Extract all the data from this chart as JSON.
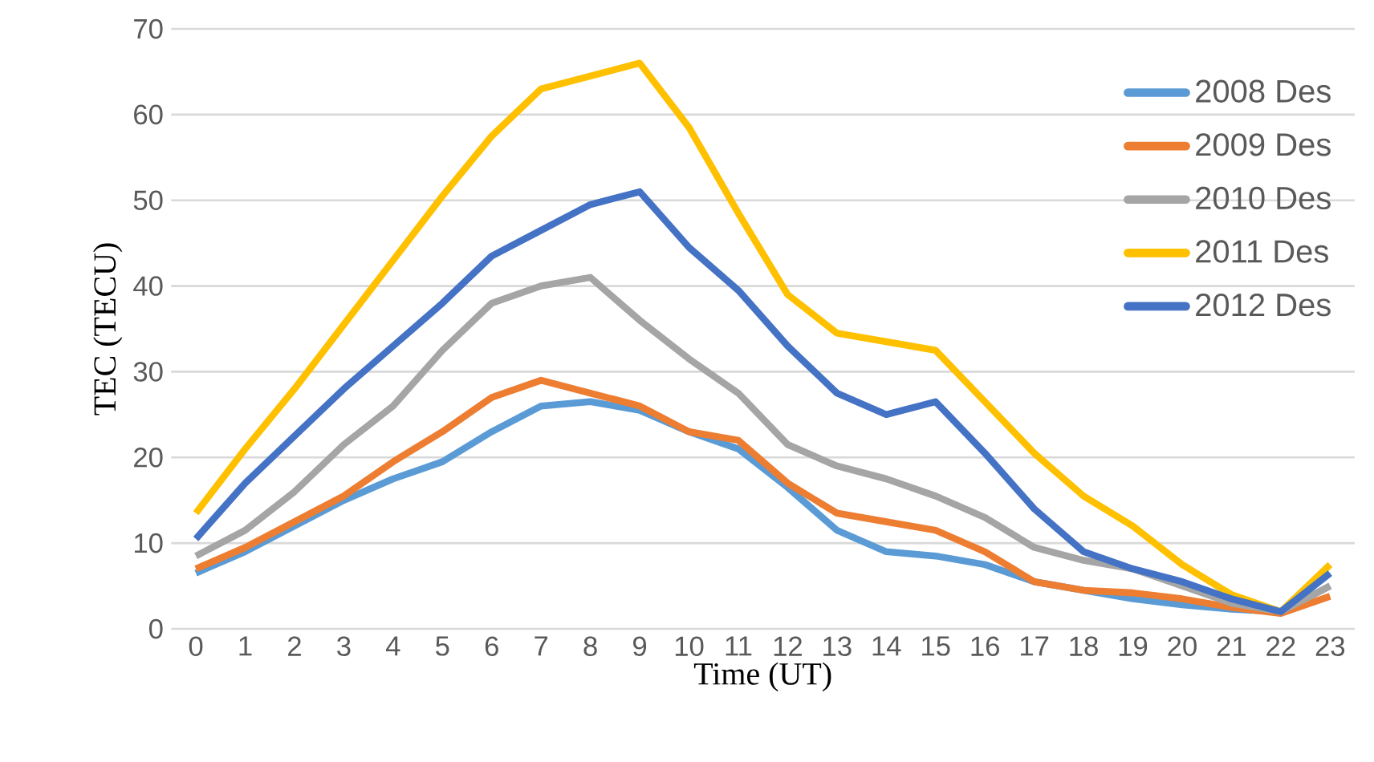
{
  "chart_data": {
    "type": "line",
    "xlabel": "Time (UT)",
    "ylabel": "TEC (TECU)",
    "categories": [
      "0",
      "1",
      "2",
      "3",
      "4",
      "5",
      "6",
      "7",
      "8",
      "9",
      "10",
      "11",
      "12",
      "13",
      "14",
      "15",
      "16",
      "17",
      "18",
      "19",
      "20",
      "21",
      "22",
      "23"
    ],
    "ylim": [
      0,
      70
    ],
    "yticks": [
      0,
      10,
      20,
      30,
      40,
      50,
      60,
      70
    ],
    "grid": "y",
    "legend": "top right",
    "marker": "none",
    "line_style": "solid",
    "series": [
      {
        "name": "2008 Des",
        "color": "#5b9bd5",
        "values": [
          6.5,
          9,
          12,
          15,
          17.5,
          19.5,
          23,
          26,
          26.5,
          25.5,
          23,
          21,
          16.5,
          11.5,
          9,
          8.5,
          7.5,
          5.5,
          4.5,
          3.5,
          2.8,
          2.3,
          2,
          5
        ]
      },
      {
        "name": "2009 Des",
        "color": "#ed7d31",
        "values": [
          7,
          9.5,
          12.5,
          15.5,
          19.5,
          23,
          27,
          29,
          27.5,
          26,
          23,
          22,
          17,
          13.5,
          12.5,
          11.5,
          9,
          5.5,
          4.5,
          4.2,
          3.5,
          2.5,
          1.8,
          3.8
        ]
      },
      {
        "name": "2010 Des",
        "color": "#a5a5a5",
        "values": [
          8.5,
          11.5,
          16,
          21.5,
          26,
          32.5,
          38,
          40,
          41,
          36,
          31.5,
          27.5,
          21.5,
          19,
          17.5,
          15.5,
          13,
          9.5,
          8,
          7,
          5,
          3,
          2,
          5
        ]
      },
      {
        "name": "2011 Des",
        "color": "#ffc000",
        "values": [
          13.5,
          21,
          28,
          35.5,
          43,
          50.5,
          57.5,
          63,
          64.5,
          66,
          58.5,
          48.5,
          39,
          34.5,
          33.5,
          32.5,
          26.5,
          20.5,
          15.5,
          12,
          7.5,
          4,
          2,
          7.5
        ]
      },
      {
        "name": "2012 Des",
        "color": "#4472c4",
        "values": [
          10.5,
          17,
          22.5,
          28,
          33,
          38,
          43.5,
          46.5,
          49.5,
          51,
          44.5,
          39.5,
          33,
          27.5,
          25,
          26.5,
          20.5,
          14,
          9,
          7,
          5.5,
          3.5,
          2,
          6.5
        ]
      }
    ]
  }
}
